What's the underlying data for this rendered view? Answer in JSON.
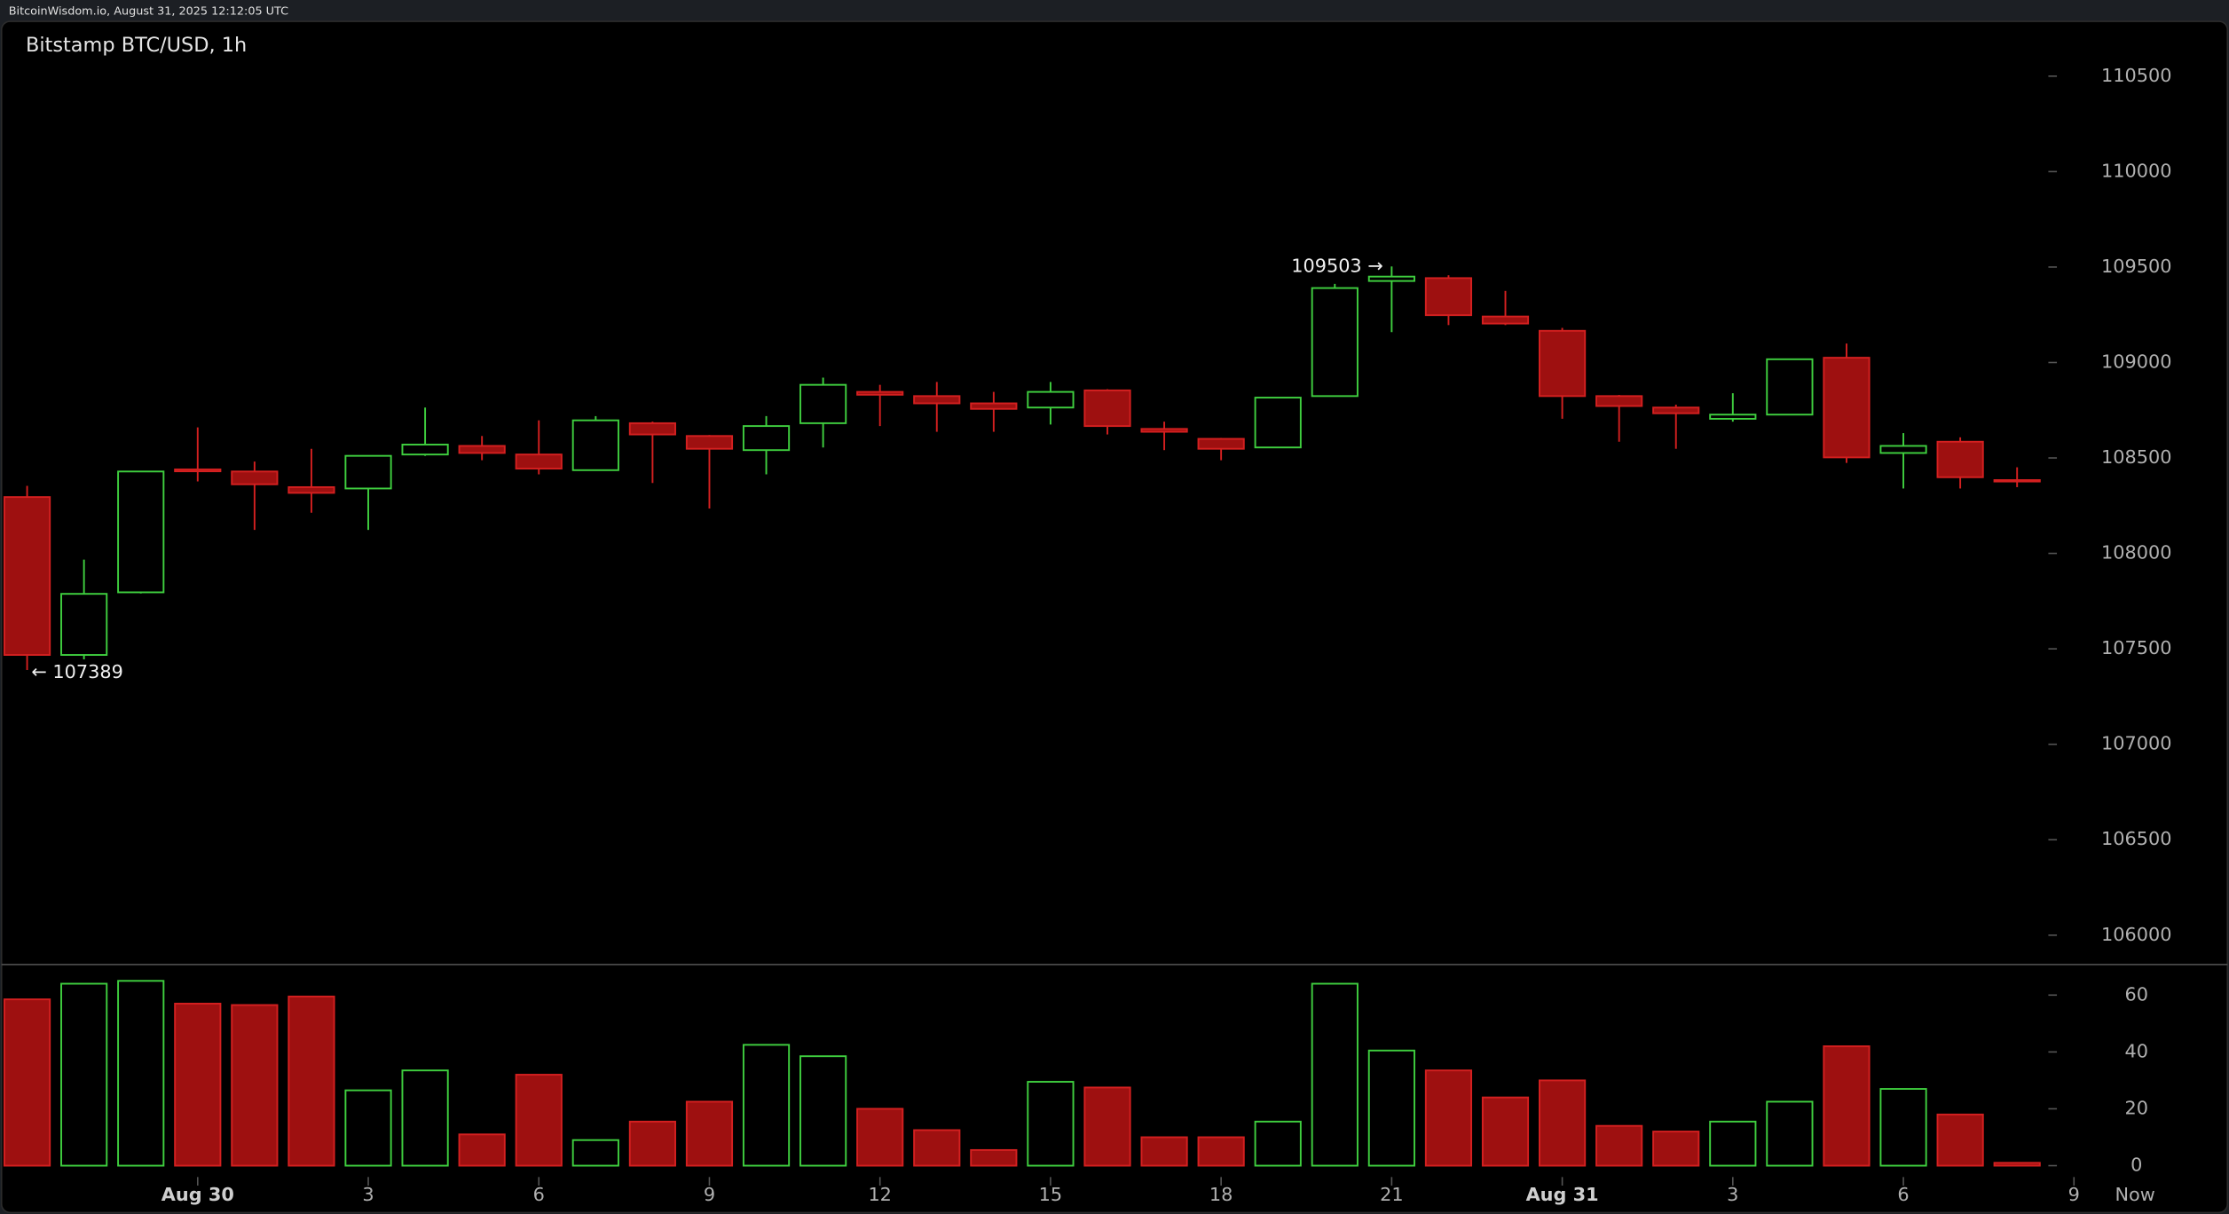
{
  "header": "BitcoinWisdom.io, August 31, 2025 12:12:05 UTC",
  "chart_data": {
    "type": "candlestick",
    "title": "Bitstamp BTC/USD, 1h",
    "categories": [
      null,
      null,
      null,
      "Aug 30",
      null,
      null,
      "3",
      null,
      null,
      "6",
      null,
      null,
      "9",
      null,
      null,
      "12",
      null,
      null,
      "15",
      null,
      null,
      "18",
      null,
      null,
      "21",
      null,
      null,
      "Aug 31",
      null,
      null,
      "3",
      null,
      null,
      "6",
      null,
      null,
      "9"
    ],
    "open": [
      108295,
      107468,
      107796,
      108440,
      108429,
      108347,
      108340,
      108518,
      108563,
      108518,
      108436,
      108682,
      108615,
      108541,
      108682,
      108846,
      108824,
      108786,
      108764,
      108854,
      108652,
      108600,
      108555,
      108824,
      109427,
      109442,
      109241,
      109166,
      108824,
      108764,
      108705,
      108727,
      109025,
      108526,
      108585,
      108384,
      null
    ],
    "high": [
      108354,
      107967,
      108429,
      108660,
      108481,
      108548,
      108511,
      108764,
      108615,
      108697,
      108719,
      108690,
      108620,
      108719,
      108921,
      108883,
      108898,
      108846,
      108898,
      108860,
      108690,
      108605,
      108816,
      109412,
      109503,
      109457,
      109375,
      109181,
      108830,
      108779,
      108839,
      109017,
      109099,
      108630,
      108608,
      108451,
      null
    ],
    "low": [
      107389,
      107445,
      107790,
      108377,
      108123,
      108213,
      108123,
      108511,
      108488,
      108414,
      108436,
      108369,
      108235,
      108414,
      108555,
      108667,
      108637,
      108637,
      108675,
      108623,
      108541,
      108488,
      108555,
      108824,
      109159,
      109196,
      109196,
      108705,
      108585,
      108548,
      108690,
      108727,
      108474,
      108340,
      108340,
      108347,
      null
    ],
    "close": [
      107468,
      107788,
      108429,
      108430,
      108362,
      108317,
      108511,
      108570,
      108526,
      108444,
      108697,
      108623,
      108548,
      108667,
      108883,
      108831,
      108786,
      108757,
      108846,
      108667,
      108637,
      108548,
      108816,
      109390,
      109450,
      109248,
      109204,
      108824,
      108772,
      108734,
      108727,
      109017,
      108503,
      108563,
      108399,
      108377,
      null
    ],
    "volume": [
      58.5,
      64,
      65,
      57,
      56.5,
      59.5,
      26.5,
      33.5,
      11,
      32,
      9,
      15.5,
      22.5,
      42.5,
      38.5,
      20,
      12.5,
      5.5,
      29.5,
      27.5,
      10,
      10,
      15.5,
      64,
      40.5,
      33.5,
      24,
      30,
      14,
      12,
      15.5,
      22.5,
      42,
      27,
      18,
      1,
      null
    ],
    "up_color": "#3fcf3f",
    "down_color": "#9e1010",
    "down_edge_color": "#d42020",
    "ylim": [
      105850,
      110750
    ],
    "yticks": [
      106000,
      106500,
      107000,
      107500,
      108000,
      108500,
      109000,
      109500,
      110000,
      110500
    ],
    "volume_ylim": [
      0,
      70
    ],
    "volume_yticks": [
      0,
      20,
      40,
      60
    ],
    "annotations": [
      {
        "value": 109503,
        "label": "109503 →"
      },
      {
        "value": 107389,
        "label": "← 107389"
      }
    ],
    "now_label": "Now"
  }
}
